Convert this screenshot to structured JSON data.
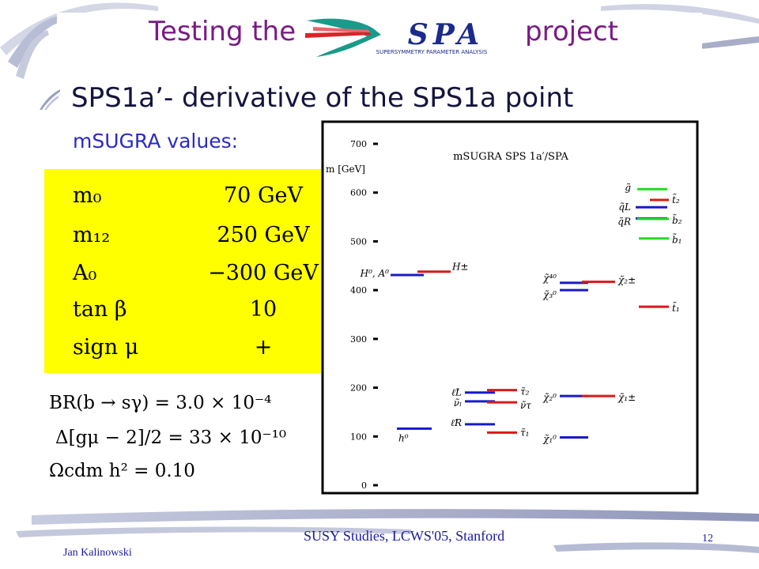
{
  "slide": {
    "title_left": "Testing the",
    "title_right": "project",
    "logo": {
      "text": "SPA",
      "subtext": "SUPERSYMMETRY PARAMETER ANALYSIS",
      "colors": [
        "#1b2a8c",
        "#1a9a8a",
        "#d8242a"
      ]
    },
    "bullet": "SPS1a’- derivative of the SPS1a point",
    "sub_label": "mSUGRA values:"
  },
  "parameters": [
    {
      "name": "m₀",
      "value": "70 GeV"
    },
    {
      "name": "m₁₂",
      "value": "250 GeV"
    },
    {
      "name": "A₀",
      "value": "−300 GeV"
    },
    {
      "name": "tan β",
      "value": "10"
    },
    {
      "name": "sign μ",
      "value": "+"
    }
  ],
  "observables": [
    "BR(b → sγ) = 3.0 × 10⁻⁴",
    "Δ[gμ − 2]/2 = 33 × 10⁻¹⁰",
    "Ωcdm h² = 0.10"
  ],
  "chart_data": {
    "type": "spectrum",
    "title": "mSUGRA SPS 1a′/SPA",
    "ylabel": "m [GeV]",
    "ylim": [
      0,
      720
    ],
    "yticks": [
      0,
      100,
      200,
      300,
      400,
      500,
      600,
      700
    ],
    "columns": [
      {
        "group": "higgs",
        "levels": [
          {
            "label": "h⁰",
            "mass": 116,
            "color": "#1a1ac8"
          },
          {
            "label": "H⁰, A⁰",
            "mass": 431,
            "color": "#1a1ac8"
          },
          {
            "label": "H±",
            "mass": 438,
            "color": "#d81a1a"
          }
        ]
      },
      {
        "group": "sleptons",
        "levels": [
          {
            "label": "ℓ̃L",
            "mass": 190,
            "color": "#1a1ac8"
          },
          {
            "label": "ν̃ₗ",
            "mass": 172,
            "color": "#1a1ac8"
          },
          {
            "label": "ℓ̃R",
            "mass": 125,
            "color": "#1a1ac8"
          },
          {
            "label": "τ̃₂",
            "mass": 195,
            "color": "#d81a1a"
          },
          {
            "label": "ν̃τ",
            "mass": 170,
            "color": "#d81a1a"
          },
          {
            "label": "τ̃₁",
            "mass": 108,
            "color": "#d81a1a"
          }
        ]
      },
      {
        "group": "gauginos",
        "levels": [
          {
            "label": "χ̃⁴⁰",
            "mass": 415,
            "color": "#1a1ac8"
          },
          {
            "label": "χ̃₃⁰",
            "mass": 400,
            "color": "#1a1ac8"
          },
          {
            "label": "χ̃₂⁰",
            "mass": 183,
            "color": "#1a1ac8"
          },
          {
            "label": "χ̃₁⁰",
            "mass": 98,
            "color": "#1a1ac8"
          },
          {
            "label": "χ̃₂±",
            "mass": 417,
            "color": "#d81a1a"
          },
          {
            "label": "χ̃₁±",
            "mass": 183,
            "color": "#d81a1a"
          }
        ]
      },
      {
        "group": "squarks",
        "levels": [
          {
            "label": "g̃",
            "mass": 607,
            "color": "#22dd22"
          },
          {
            "label": "q̃L",
            "mass": 570,
            "color": "#1a1ac8"
          },
          {
            "label": "q̃R",
            "mass": 547,
            "color": "#1a1ac8"
          },
          {
            "label": "t̃₂",
            "mass": 585,
            "color": "#d81a1a"
          },
          {
            "label": "b̃₂",
            "mass": 546,
            "color": "#22dd22"
          },
          {
            "label": "b̃₁",
            "mass": 506,
            "color": "#22dd22"
          },
          {
            "label": "t̃₁",
            "mass": 366,
            "color": "#d81a1a"
          }
        ]
      }
    ]
  },
  "footer": {
    "center": "SUSY Studies, LCWS'05, Stanford",
    "page": "12",
    "author": "Jan Kalinowski"
  }
}
